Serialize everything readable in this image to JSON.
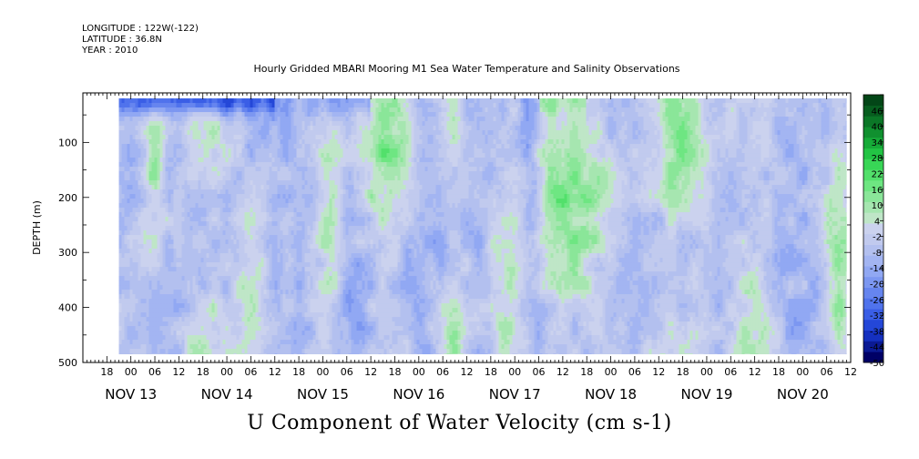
{
  "header": {
    "longitude": "LONGITUDE : 122W(-122)",
    "latitude": "LATITUDE : 36.8N",
    "year": "YEAR : 2010"
  },
  "chart_data": {
    "type": "heatmap",
    "title": "Hourly Gridded MBARI Mooring M1 Sea Water Temperature and Salinity Observations",
    "caption": "U Component of Water Velocity (cm s-1)",
    "ylabel": "DEPTH (m)",
    "ylim": [
      500,
      10
    ],
    "y_ticks": [
      100,
      200,
      300,
      400,
      500
    ],
    "data_depth_range": [
      20,
      485
    ],
    "x_start": "2010-11-12T12:00",
    "x_end": "2010-11-20T12:00",
    "data_time_range": [
      "2010-11-12T21:00",
      "2010-11-20T11:00"
    ],
    "hour_ticks": [
      "18",
      "00",
      "06",
      "12",
      "18",
      "00",
      "06",
      "12",
      "18",
      "00",
      "06",
      "12",
      "18",
      "00",
      "06",
      "12",
      "18",
      "00",
      "06",
      "12",
      "18",
      "00",
      "06",
      "12",
      "18",
      "00",
      "06",
      "12",
      "18",
      "00",
      "06",
      "12"
    ],
    "day_labels": [
      "NOV 13",
      "NOV 14",
      "NOV 15",
      "NOV 16",
      "NOV 17",
      "NOV 18",
      "NOV 19",
      "NOV 20"
    ],
    "colorbar": {
      "min": -50,
      "max": 52,
      "step": 6,
      "labels": [
        "46",
        "40",
        "34",
        "28",
        "22",
        "16",
        "10",
        "4",
        "-2",
        "-8",
        "-14",
        "-20",
        "-26",
        "-32",
        "-38",
        "-44",
        "-50"
      ],
      "colors": [
        "#000066",
        "#0b1a94",
        "#1530c0",
        "#2447d8",
        "#3a5ee6",
        "#5073ec",
        "#6685ef",
        "#7c97f1",
        "#91a8f3",
        "#a3b5f2",
        "#b3c0ef",
        "#c1caee",
        "#cbd2ee",
        "#bfe6c7",
        "#a6e6b0",
        "#8ae699",
        "#6ee682",
        "#52e06b",
        "#38d656",
        "#22c444",
        "#16ab38",
        "#10902f",
        "#0b7727",
        "#075e1f",
        "#034617"
      ]
    },
    "u_component_cm_s": {
      "note": "Time-depth section of U velocity; negative (blue) flow dominates, with columns of positive (green) flow",
      "depth_top_band_at_20_60m": [
        {
          "from": "2010-11-12T21:00",
          "to": "2010-11-14T12:00",
          "value": -32
        },
        {
          "from": "2010-11-14T12:00",
          "to": "2010-11-15T12:00",
          "value": -14
        },
        {
          "from": "2010-11-17T06:00",
          "to": "2010-11-17T18:00",
          "value": 10
        }
      ],
      "positive_columns": [
        {
          "center": "2010-11-13T06:00",
          "width_h": 4,
          "value": 8
        },
        {
          "center": "2010-11-13T18:00",
          "width_h": 8,
          "value": 12
        },
        {
          "center": "2010-11-14T06:00",
          "width_h": 6,
          "value": 7
        },
        {
          "center": "2010-11-15T02:00",
          "width_h": 5,
          "value": 9
        },
        {
          "center": "2010-11-15T16:00",
          "width_h": 10,
          "value": 14
        },
        {
          "center": "2010-11-16T08:00",
          "width_h": 6,
          "value": 8
        },
        {
          "center": "2010-11-16T22:00",
          "width_h": 6,
          "value": 7
        },
        {
          "center": "2010-11-17T14:00",
          "width_h": 16,
          "value": 15
        },
        {
          "center": "2010-11-18T18:00",
          "width_h": 14,
          "value": 16
        },
        {
          "center": "2010-11-19T12:00",
          "width_h": 8,
          "value": 9
        },
        {
          "center": "2010-11-20T09:00",
          "width_h": 5,
          "value": 12
        }
      ],
      "negative_columns": [
        {
          "center": "2010-11-13T13:00",
          "width_h": 5,
          "value": -14
        },
        {
          "center": "2010-11-14T12:00",
          "width_h": 6,
          "value": -12
        },
        {
          "center": "2010-11-15T08:00",
          "width_h": 6,
          "value": -15
        },
        {
          "center": "2010-11-16T02:00",
          "width_h": 8,
          "value": -14
        },
        {
          "center": "2010-11-16T16:00",
          "width_h": 4,
          "value": -12
        },
        {
          "center": "2010-11-17T04:00",
          "width_h": 4,
          "value": -18
        },
        {
          "center": "2010-11-18T04:00",
          "width_h": 10,
          "value": -16
        },
        {
          "center": "2010-11-19T02:00",
          "width_h": 8,
          "value": -18
        },
        {
          "center": "2010-11-19T22:00",
          "width_h": 8,
          "value": -14
        }
      ]
    }
  }
}
